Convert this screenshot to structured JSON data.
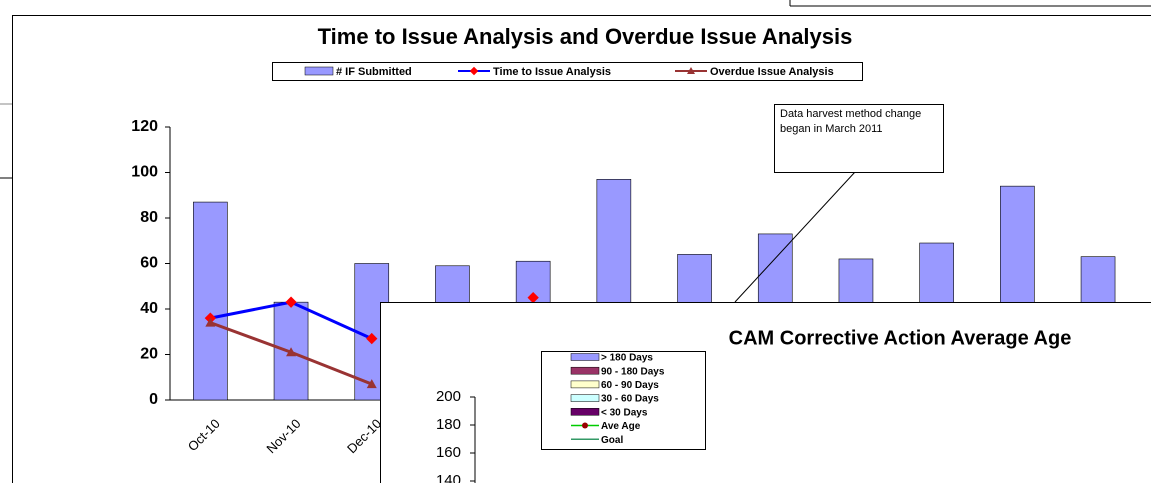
{
  "chart_data": [
    {
      "type": "bar",
      "title": "Time to Issue Analysis and Overdue Issue Analysis",
      "categories": [
        "Oct-10",
        "Nov-10",
        "Dec-10",
        null,
        null,
        null,
        null,
        null,
        null,
        null,
        null,
        null
      ],
      "series": [
        {
          "name": "# IF Submitted",
          "type": "bar",
          "color": "#9999ff",
          "values": [
            87,
            43,
            60,
            59,
            61,
            97,
            64,
            73,
            62,
            69,
            94,
            63
          ]
        },
        {
          "name": "Time to Issue Analysis",
          "type": "line",
          "color": "#0000ff",
          "marker_color": "#ff0000",
          "values": [
            36,
            43,
            27,
            null,
            45,
            null,
            null,
            null,
            null,
            null,
            null,
            null
          ]
        },
        {
          "name": "Overdue Issue Analysis",
          "type": "line",
          "color": "#993333",
          "marker_color": "#993333",
          "values": [
            34,
            21,
            7,
            null,
            null,
            null,
            null,
            null,
            null,
            null,
            null,
            null
          ]
        }
      ],
      "ylim": [
        0,
        120
      ],
      "yticks": [
        0,
        20,
        40,
        60,
        80,
        100,
        120
      ],
      "annotation": "Data harvest method change began in March 2011",
      "legend": "top"
    },
    {
      "type": "bar",
      "title": "CAM Corrective Action Average Age",
      "series": [
        {
          "name": "> 180 Days",
          "type": "bar",
          "color": "#9999ff"
        },
        {
          "name": "90 - 180 Days",
          "type": "bar",
          "color": "#993366"
        },
        {
          "name": "60 - 90 Days",
          "type": "bar",
          "color": "#ffffcc"
        },
        {
          "name": "30 - 60 Days",
          "type": "bar",
          "color": "#ccffff"
        },
        {
          "name": "< 30 Days",
          "type": "bar",
          "color": "#660066"
        },
        {
          "name": "Ave Age",
          "type": "line",
          "color": "#00cc00",
          "marker_color": "#990000"
        },
        {
          "name": "Goal",
          "type": "line",
          "color": "#339966"
        }
      ],
      "ylim": [
        140,
        200
      ],
      "yticks": [
        140,
        160,
        180,
        200
      ],
      "legend": "left"
    }
  ]
}
